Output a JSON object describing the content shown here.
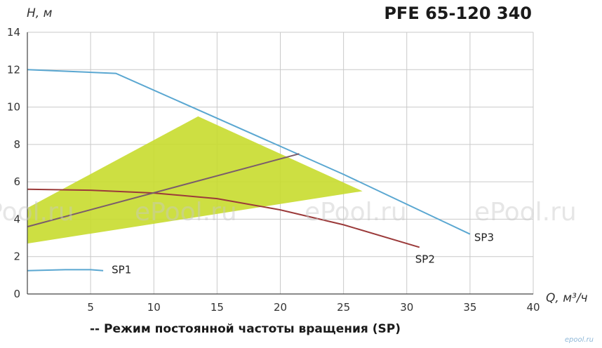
{
  "chart_data": {
    "type": "line",
    "title": "PFE 65-120 340",
    "ylabel": "H, м",
    "xlabel": "Q, м³/ч",
    "xlim": [
      0,
      40
    ],
    "ylim": [
      0,
      14
    ],
    "x_ticks": [
      "5",
      "10",
      "15",
      "20",
      "25",
      "30",
      "35",
      "40"
    ],
    "y_ticks": [
      "0",
      "2",
      "4",
      "6",
      "8",
      "10",
      "12",
      "14"
    ],
    "grid": true,
    "series": [
      {
        "name": "SP1",
        "color": "#5aa7d1",
        "points": [
          [
            0,
            1.25
          ],
          [
            3,
            1.3
          ],
          [
            5,
            1.3
          ],
          [
            6,
            1.25
          ]
        ]
      },
      {
        "name": "SP2",
        "color": "#9b3a3a",
        "points": [
          [
            0,
            5.6
          ],
          [
            5,
            5.55
          ],
          [
            10,
            5.4
          ],
          [
            15,
            5.1
          ],
          [
            20,
            4.5
          ],
          [
            25,
            3.7
          ],
          [
            31,
            2.5
          ]
        ]
      },
      {
        "name": "SP3",
        "color": "#5aa7d1",
        "points": [
          [
            0,
            12.0
          ],
          [
            7,
            11.8
          ],
          [
            14,
            9.7
          ],
          [
            20,
            7.9
          ],
          [
            25,
            6.4
          ],
          [
            30,
            4.8
          ],
          [
            35,
            3.2
          ]
        ]
      },
      {
        "name": "",
        "color": "#7a5c6c",
        "points": [
          [
            0,
            3.6
          ],
          [
            21.5,
            7.5
          ]
        ]
      }
    ],
    "region": {
      "color": "#c8dc2e",
      "polygon": [
        [
          0,
          2.7
        ],
        [
          0,
          4.6
        ],
        [
          13.5,
          9.5
        ],
        [
          26.5,
          5.5
        ]
      ]
    },
    "legend": "labels at curve ends"
  },
  "footnote": "-- Режим постоянной частоты вращения (SP)",
  "watermark": "ePool.ru",
  "corner_mark": "epool.ru"
}
